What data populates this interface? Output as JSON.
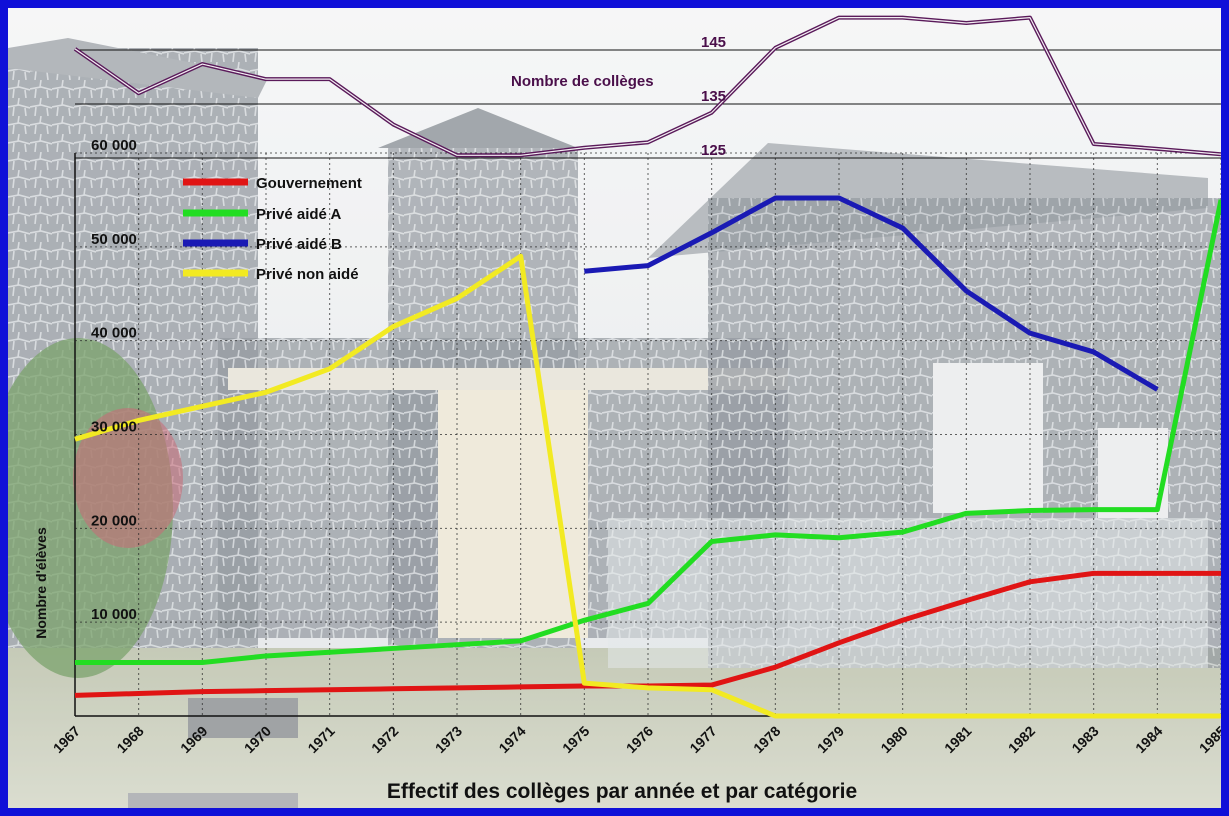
{
  "chart_data": [
    {
      "type": "line",
      "title": "Effectif des collèges par année et par catégorie",
      "ylabel": "Nombre d'élèves",
      "x": [
        1967,
        1968,
        1969,
        1970,
        1971,
        1972,
        1973,
        1974,
        1975,
        1976,
        1977,
        1978,
        1979,
        1980,
        1981,
        1982,
        1983,
        1984,
        1985
      ],
      "ylim": [
        0,
        60000
      ],
      "yticks": [
        "10 000",
        "20 000",
        "30 000",
        "40 000",
        "50 000",
        "60 000"
      ],
      "xticks": [
        "1967",
        "1968",
        "1969",
        "1970",
        "1971",
        "1972",
        "1973",
        "1974",
        "1975",
        "1976",
        "1977",
        "1978",
        "1979",
        "1980",
        "1981",
        "1982",
        "1983",
        "1984",
        "1985"
      ],
      "grid": true,
      "legend_position": "top-left",
      "series": [
        {
          "name": "Gouvernement",
          "color": "#e01414",
          "values": [
            2200,
            2400,
            2600,
            2700,
            2800,
            2900,
            3000,
            3100,
            3200,
            3200,
            3300,
            5200,
            7800,
            10200,
            12300,
            14300,
            15200,
            15200,
            15200
          ]
        },
        {
          "name": "Privé aidé A",
          "color": "#22dd22",
          "values": [
            5700,
            5700,
            5700,
            6400,
            6800,
            7200,
            7600,
            8000,
            10200,
            12000,
            18600,
            19300,
            19000,
            19600,
            21600,
            21900,
            22000,
            22000,
            55000
          ]
        },
        {
          "name": "Privé aidé B",
          "color": "#1a1ab4",
          "values": [
            null,
            null,
            null,
            null,
            null,
            null,
            null,
            null,
            47400,
            48000,
            51500,
            55200,
            55200,
            52000,
            45300,
            40800,
            38800,
            34800,
            null
          ]
        },
        {
          "name": "Privé non aidé",
          "color": "#f2ea22",
          "values": [
            29500,
            31500,
            33000,
            34500,
            37000,
            41500,
            44500,
            49000,
            3500,
            3000,
            2800,
            0,
            0,
            0,
            0,
            0,
            0,
            0,
            0
          ]
        }
      ]
    },
    {
      "type": "line",
      "title": "Nombre de collèges",
      "x": [
        1967,
        1968,
        1969,
        1970,
        1971,
        1972,
        1973,
        1974,
        1975,
        1976,
        1977,
        1978,
        1979,
        1980,
        1981,
        1982,
        1983,
        1984,
        1985
      ],
      "yticks": [
        "125",
        "135",
        "145"
      ],
      "ylim": [
        125,
        145
      ],
      "color": "#5a1a5a",
      "series": [
        {
          "name": "Nombre de collèges",
          "values": [
            145.2,
            137.0,
            142.4,
            139.6,
            139.6,
            131.2,
            125.5,
            125.5,
            126.9,
            127.9,
            133.4,
            145.4,
            151.0,
            151.0,
            150.0,
            151.0,
            127.6,
            126.7,
            125.7
          ]
        }
      ]
    }
  ]
}
